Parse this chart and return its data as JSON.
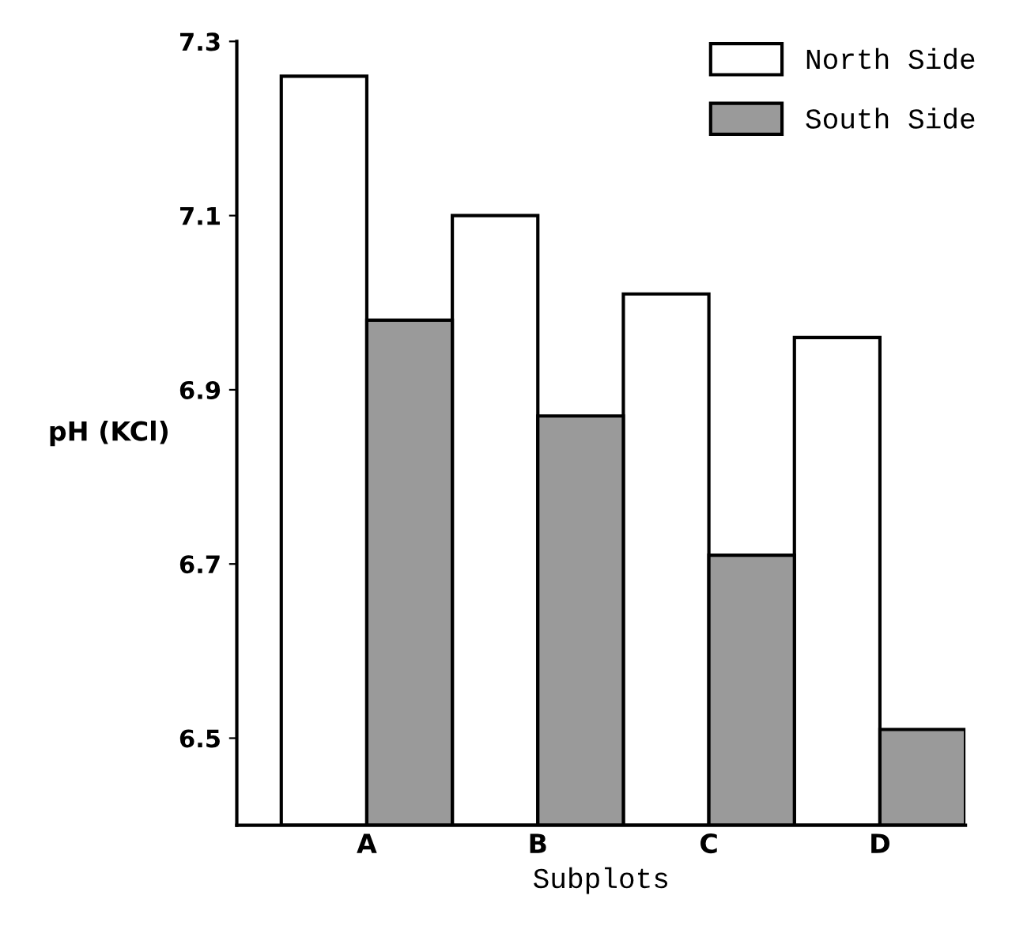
{
  "chart_data": {
    "type": "bar",
    "xlabel": "Subplots",
    "ylabel": "pH (KCl)",
    "categories": [
      "A",
      "B",
      "C",
      "D"
    ],
    "series": [
      {
        "name": "North Side",
        "color": "#ffffff",
        "values": [
          7.26,
          7.1,
          7.01,
          6.96
        ]
      },
      {
        "name": "South Side",
        "color": "#9a9a9a",
        "values": [
          6.98,
          6.87,
          6.71,
          6.51
        ]
      }
    ],
    "ylim": [
      6.4,
      7.3
    ],
    "yticks": [
      6.5,
      6.7,
      6.9,
      7.1,
      7.3
    ],
    "grid": false,
    "legend": "top right"
  }
}
